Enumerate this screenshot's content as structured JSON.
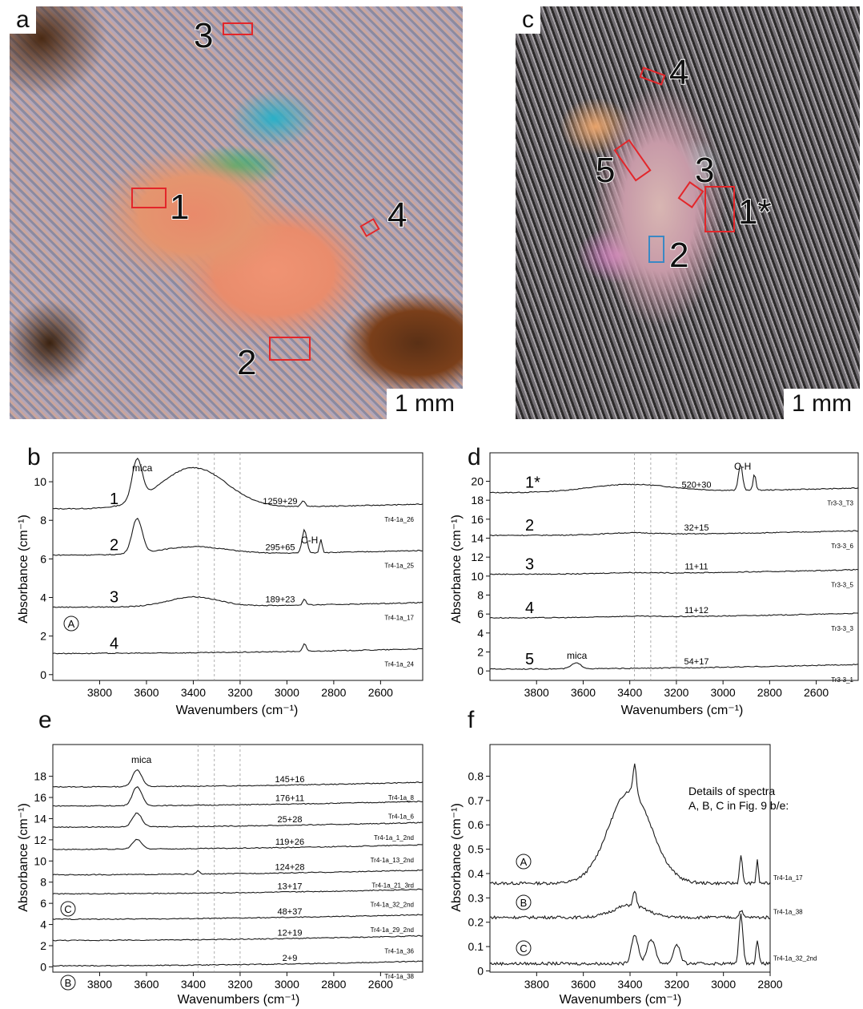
{
  "panels": {
    "a": {
      "letter": "a",
      "scale": "1 mm",
      "spots": [
        "1",
        "2",
        "3",
        "4"
      ]
    },
    "c": {
      "letter": "c",
      "scale": "1 mm",
      "spots": [
        "1*",
        "2",
        "3",
        "4",
        "5"
      ]
    },
    "b": {
      "letter": "b",
      "ylabel": "Absorbance (cm⁻¹)",
      "xlabel": "Wavenumbers (cm⁻¹)",
      "annot_mica": "mica",
      "annot_ch": "C-H",
      "marker": "A"
    },
    "d": {
      "letter": "d",
      "ylabel": "Absorbance (cm⁻¹)",
      "xlabel": "Wavenumbers (cm⁻¹)",
      "annot_mica": "mica",
      "annot_ch": "C-H"
    },
    "e": {
      "letter": "e",
      "ylabel": "Absorbance (cm⁻¹)",
      "xlabel": "Wavenumbers (cm⁻¹)",
      "annot_mica": "mica",
      "marker_c": "C",
      "marker_b": "B"
    },
    "f": {
      "letter": "f",
      "ylabel": "Absorbance (cm⁻¹)",
      "xlabel": "Wavenumbers (cm⁻¹)",
      "note_line1": "Details of spectra",
      "note_line2": "A, B, C in Fig. 9 b/e:",
      "marker_a": "A",
      "marker_b": "B",
      "marker_c": "C"
    }
  },
  "chart_data": [
    {
      "id": "b",
      "type": "line",
      "xlim": [
        4000,
        2420
      ],
      "ylim": [
        -0.3,
        11.5
      ],
      "xticks": [
        3800,
        3600,
        3400,
        3200,
        3000,
        2800,
        2600
      ],
      "yticks": [
        0,
        2,
        4,
        6,
        8,
        10
      ],
      "dashed_x": [
        3380,
        3310,
        3200
      ],
      "series": [
        {
          "num": "1",
          "id": "Tr4-1a_26",
          "value": "1259+29",
          "base": 8.6,
          "peaks": [
            [
              3640,
              2.1,
              30
            ],
            [
              3400,
              2.1,
              200
            ],
            [
              2930,
              0.3,
              12
            ]
          ]
        },
        {
          "num": "2",
          "id": "Tr4-1a_25",
          "value": "295+65",
          "base": 6.2,
          "peaks": [
            [
              3640,
              1.8,
              30
            ],
            [
              3400,
              0.4,
              200
            ],
            [
              2925,
              1.2,
              14
            ],
            [
              2855,
              0.7,
              8
            ]
          ]
        },
        {
          "num": "3",
          "id": "Tr4-1a_17",
          "value": "189+23",
          "base": 3.5,
          "peaks": [
            [
              3400,
              0.5,
              150
            ],
            [
              2925,
              0.3,
              10
            ]
          ]
        },
        {
          "num": "4",
          "id": "Tr4-1a_24",
          "value": "",
          "base": 1.1,
          "peaks": [
            [
              2925,
              0.4,
              10
            ]
          ]
        }
      ]
    },
    {
      "id": "d",
      "type": "line",
      "xlim": [
        4000,
        2420
      ],
      "ylim": [
        -1,
        23
      ],
      "xticks": [
        3800,
        3600,
        3400,
        3200,
        3000,
        2800,
        2600
      ],
      "yticks": [
        0,
        2,
        4,
        6,
        8,
        10,
        12,
        14,
        16,
        18,
        20
      ],
      "dashed_x": [
        3380,
        3310,
        3200
      ],
      "series": [
        {
          "num": "1*",
          "id": "Tr3-3_T3",
          "value": "520+30",
          "base": 18.8,
          "peaks": [
            [
              3400,
              0.8,
              250
            ],
            [
              2925,
              2.8,
              12
            ],
            [
              2865,
              1.8,
              8
            ]
          ]
        },
        {
          "num": "2",
          "id": "Tr3-3_6",
          "value": "32+15",
          "base": 14.3,
          "peaks": [
            [
              3400,
              0.2,
              150
            ]
          ]
        },
        {
          "num": "3",
          "id": "Tr3-3_5",
          "value": "11+11",
          "base": 10.2,
          "peaks": [
            [
              3400,
              0.1,
              150
            ]
          ]
        },
        {
          "num": "4",
          "id": "Tr3-3_3",
          "value": "11+12",
          "base": 5.6,
          "peaks": [
            [
              3400,
              0.1,
              150
            ]
          ]
        },
        {
          "num": "5",
          "id": "Tr3-3_1",
          "value": "54+17",
          "base": 0.2,
          "peaks": [
            [
              3630,
              0.6,
              30
            ]
          ]
        }
      ]
    },
    {
      "id": "e",
      "type": "line",
      "xlim": [
        4000,
        2420
      ],
      "ylim": [
        -0.5,
        21
      ],
      "xticks": [
        3800,
        3600,
        3400,
        3200,
        3000,
        2800,
        2600
      ],
      "yticks": [
        0,
        2,
        4,
        6,
        8,
        10,
        12,
        14,
        16,
        18
      ],
      "dashed_x": [
        3380,
        3310,
        3200
      ],
      "series": [
        {
          "id": "Tr4-1a_8",
          "value": "145+16",
          "base": 17.0,
          "peaks": [
            [
              3640,
              1.6,
              28
            ]
          ]
        },
        {
          "id": "Tr4-1a_6",
          "value": "176+11",
          "base": 15.2,
          "peaks": [
            [
              3640,
              1.8,
              28
            ]
          ]
        },
        {
          "id": "Tr4-1a_1_2nd",
          "value": "25+28",
          "base": 13.2,
          "peaks": [
            [
              3640,
              1.3,
              28
            ]
          ]
        },
        {
          "id": "Tr4-1a_13_2nd",
          "value": "119+26",
          "base": 11.1,
          "peaks": [
            [
              3640,
              0.9,
              28
            ]
          ]
        },
        {
          "id": "Tr4-1a_21_3rd",
          "value": "124+28",
          "base": 8.7,
          "peaks": [
            [
              3380,
              0.3,
              10
            ]
          ]
        },
        {
          "id": "Tr4-1a_32_2nd",
          "value": "13+17",
          "base": 6.9,
          "peaks": []
        },
        {
          "id": "Tr4-1a_29_2nd",
          "value": "48+37",
          "base": 4.5,
          "peaks": []
        },
        {
          "id": "Tr4-1a_36",
          "value": "12+19",
          "base": 2.5,
          "peaks": []
        },
        {
          "id": "Tr4-1a_38",
          "value": "2+9",
          "base": 0.1,
          "peaks": []
        }
      ]
    },
    {
      "id": "f",
      "type": "line",
      "xlim": [
        4000,
        2800
      ],
      "ylim": [
        -0.005,
        0.93
      ],
      "xticks": [
        3800,
        3600,
        3400,
        3200,
        3000,
        2800
      ],
      "yticks": [
        0,
        0.1,
        0.2,
        0.3,
        0.4,
        0.5,
        0.6,
        0.7,
        0.8
      ],
      "series": [
        {
          "name": "A",
          "id": "Tr4-1a_17",
          "base": 0.36,
          "peaks": [
            [
              3400,
              0.38,
              130
            ],
            [
              3380,
              0.12,
              10
            ],
            [
              2925,
              0.12,
              8
            ],
            [
              2855,
              0.1,
              6
            ]
          ]
        },
        {
          "name": "B",
          "id": "Tr4-1a_38",
          "base": 0.22,
          "peaks": [
            [
              3400,
              0.05,
              100
            ],
            [
              3380,
              0.06,
              10
            ],
            [
              2925,
              0.03,
              10
            ]
          ]
        },
        {
          "name": "C",
          "id": "Tr4-1a_32_2nd",
          "base": 0.03,
          "peaks": [
            [
              3380,
              0.12,
              20
            ],
            [
              3310,
              0.1,
              25
            ],
            [
              3200,
              0.08,
              20
            ],
            [
              2925,
              0.2,
              12
            ],
            [
              2855,
              0.1,
              8
            ]
          ]
        }
      ]
    }
  ],
  "colors": {
    "roi": "#e3262a",
    "roi_alt": "#3b88c4",
    "line": "#1a1a1a"
  }
}
